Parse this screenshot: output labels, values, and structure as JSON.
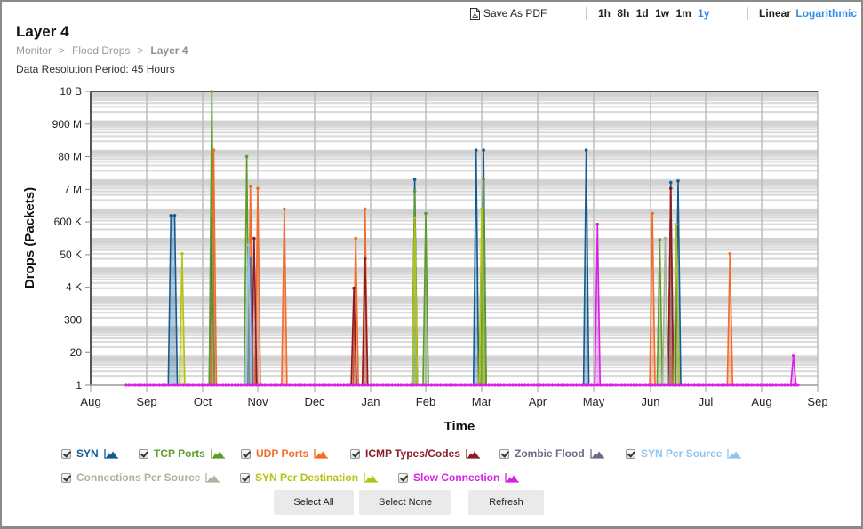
{
  "header": {
    "title": "Layer 4",
    "breadcrumb": [
      "Monitor",
      "Flood Drops",
      "Layer 4"
    ],
    "resolution": "Data Resolution Period: 45 Hours"
  },
  "toolbar": {
    "save_pdf": "Save As PDF",
    "ranges": [
      "1h",
      "8h",
      "1d",
      "1w",
      "1m",
      "1y"
    ],
    "active_range": "1y",
    "scales": [
      "Linear",
      "Logarithmic"
    ],
    "active_scale": "Logarithmic"
  },
  "buttons": {
    "select_all": "Select All",
    "select_none": "Select None",
    "refresh": "Refresh"
  },
  "legend": [
    {
      "label": "SYN",
      "color": "#125b93",
      "checked": true
    },
    {
      "label": "TCP Ports",
      "color": "#5c9c2a",
      "checked": true
    },
    {
      "label": "UDP Ports",
      "color": "#f26b2a",
      "checked": true
    },
    {
      "label": "ICMP Types/Codes",
      "color": "#8a1c24",
      "checked": true
    },
    {
      "label": "Zombie Flood",
      "color": "#6d6887",
      "checked": true
    },
    {
      "label": "SYN Per Source",
      "color": "#8fc6ee",
      "checked": true
    },
    {
      "label": "Connections Per Source",
      "color": "#a9b59b",
      "checked": true
    },
    {
      "label": "SYN Per Destination",
      "color": "#b4c214",
      "checked": true
    },
    {
      "label": "Slow Connection",
      "color": "#d91ee6",
      "checked": true
    }
  ],
  "chart_data": {
    "type": "area",
    "title": "",
    "xlabel": "Time",
    "ylabel": "Drops (Packets)",
    "yscale": "log",
    "ylim": [
      1,
      10000000000
    ],
    "y_ticks": [
      "1",
      "20",
      "300",
      "4 K",
      "50 K",
      "600 K",
      "7 M",
      "80 M",
      "900 M",
      "10 B"
    ],
    "x_ticks": [
      "Aug",
      "Sep",
      "Oct",
      "Nov",
      "Dec",
      "Jan",
      "Feb",
      "Mar",
      "Apr",
      "May",
      "Jun",
      "Jul",
      "Aug",
      "Sep"
    ],
    "grid": true,
    "legend_position": "bottom",
    "series": [
      {
        "name": "SYN",
        "color": "#125b93",
        "peaks": [
          {
            "x": "Sep 14",
            "y": 600000
          },
          {
            "x": "Sep 16",
            "y": 600000
          },
          {
            "x": "Oct 6",
            "y": 500000
          },
          {
            "x": "Jan 25",
            "y": 10000000
          },
          {
            "x": "Feb 28",
            "y": 100000000
          },
          {
            "x": "Mar 2",
            "y": 100000000
          },
          {
            "x": "Apr 27",
            "y": 100000000
          },
          {
            "x": "Jun 12",
            "y": 8000000
          },
          {
            "x": "Jun 16",
            "y": 9000000
          }
        ]
      },
      {
        "name": "TCP Ports",
        "color": "#5c9c2a",
        "peaks": [
          {
            "x": "Oct 6",
            "y": 10000000000
          },
          {
            "x": "Oct 25",
            "y": 60000000
          },
          {
            "x": "Jan 25",
            "y": 4000000
          },
          {
            "x": "Feb 1",
            "y": 700000
          },
          {
            "x": "Mar 2",
            "y": 10000000
          },
          {
            "x": "Jun 6",
            "y": 90000
          }
        ]
      },
      {
        "name": "UDP Ports",
        "color": "#f26b2a",
        "peaks": [
          {
            "x": "Oct 7",
            "y": 100000000
          },
          {
            "x": "Oct 27",
            "y": 6000000
          },
          {
            "x": "Nov 1",
            "y": 5000000
          },
          {
            "x": "Nov 15",
            "y": 1000000
          },
          {
            "x": "Dec 23",
            "y": 100000
          },
          {
            "x": "Dec 28",
            "y": 1000000
          },
          {
            "x": "Jun 2",
            "y": 700000
          },
          {
            "x": "Jun 12",
            "y": 5000000
          },
          {
            "x": "Jul 14",
            "y": 30000
          }
        ]
      },
      {
        "name": "ICMP Types/Codes",
        "color": "#8a1c24",
        "peaks": [
          {
            "x": "Oct 29",
            "y": 100000
          },
          {
            "x": "Dec 22",
            "y": 2000
          },
          {
            "x": "Dec 28",
            "y": 20000
          },
          {
            "x": "Jun 12",
            "y": 5000000
          }
        ]
      },
      {
        "name": "Zombie Flood",
        "color": "#6d6887",
        "peaks": [
          {
            "x": "Oct 27",
            "y": 20000
          }
        ]
      },
      {
        "name": "SYN Per Source",
        "color": "#8fc6ee",
        "peaks": [
          {
            "x": "Oct 26",
            "y": 60000
          }
        ]
      },
      {
        "name": "Connections Per Source",
        "color": "#a9b59b",
        "peaks": [
          {
            "x": "Jun 9",
            "y": 100000
          }
        ]
      },
      {
        "name": "SYN Per Destination",
        "color": "#b4c214",
        "peaks": [
          {
            "x": "Sep 20",
            "y": 30000
          },
          {
            "x": "Jan 25",
            "y": 500000
          },
          {
            "x": "Mar 1",
            "y": 1000000
          },
          {
            "x": "Jun 15",
            "y": 300000
          }
        ]
      },
      {
        "name": "Slow Connection",
        "color": "#d91ee6",
        "peaks": [
          {
            "x": "May 3",
            "y": 300000
          },
          {
            "x": "Aug 18",
            "y": 10
          }
        ],
        "baseline": 1
      }
    ]
  }
}
